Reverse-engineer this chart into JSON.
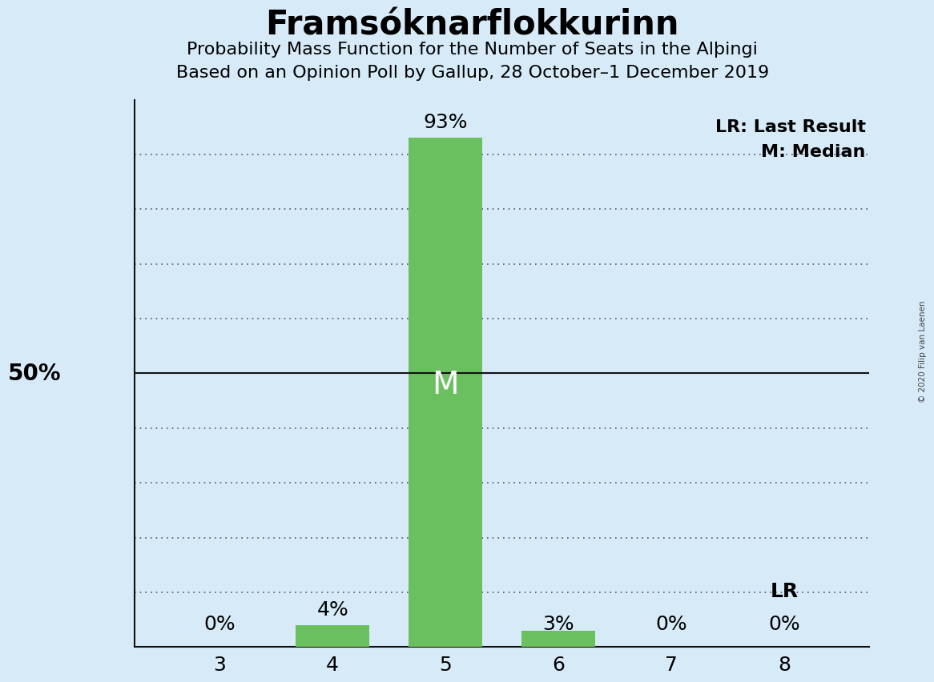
{
  "title": "Framsóknarflokkurinn",
  "subtitle1": "Probability Mass Function for the Number of Seats in the Alþingi",
  "subtitle2": "Based on an Opinion Poll by Gallup, 28 October–1 December 2019",
  "categories": [
    3,
    4,
    5,
    6,
    7,
    8
  ],
  "values": [
    0,
    4,
    93,
    3,
    0,
    0
  ],
  "bar_color": "#6abf5e",
  "median_bar": 5,
  "lr_bar": 8,
  "background_color": "#d6eaf8",
  "bar_width": 0.65,
  "ylim": [
    0,
    100
  ],
  "yticks": [
    0,
    10,
    20,
    30,
    40,
    50,
    60,
    70,
    80,
    90,
    100
  ],
  "annotation_LR": "LR",
  "annotation_LR_last_result": "LR: Last Result",
  "annotation_M_median": "M: Median",
  "watermark": "© 2020 Filip van Laenen",
  "grid_color": "#555577",
  "fifty_line_color": "#111111",
  "title_fontsize": 30,
  "subtitle_fontsize": 16,
  "tick_fontsize": 18,
  "pct_label_fontsize": 18,
  "legend_fontsize": 16,
  "M_label_fontsize": 28,
  "fifty_label_fontsize": 20,
  "LR_label_fontsize": 18
}
